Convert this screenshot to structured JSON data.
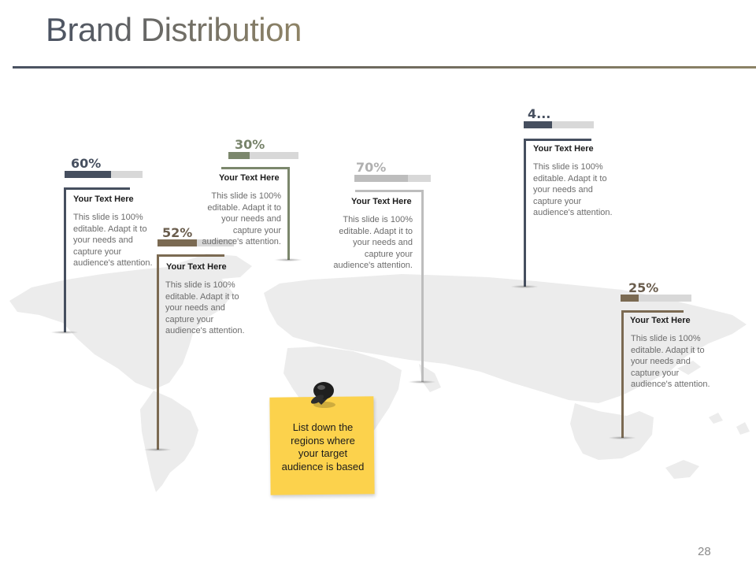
{
  "slide": {
    "title": "Brand Distribution",
    "page_number": "28"
  },
  "sticky_note": {
    "text": "List down the regions where your target audience is based"
  },
  "markers": [
    {
      "percent_label": "60%",
      "percent_value": 60,
      "heading": "Your Text Here",
      "body": "This slide is 100% editable. Adapt it to your needs and capture your audience's attention.",
      "color": "#464f5f",
      "label_color": "#464f5f"
    },
    {
      "percent_label": "52%",
      "percent_value": 52,
      "heading": "Your Text Here",
      "body": "This slide is 100% editable. Adapt it to your needs and capture your audience's attention.",
      "color": "#7b6a52",
      "label_color": "#6a5d4d"
    },
    {
      "percent_label": "30%",
      "percent_value": 30,
      "heading": "Your Text Here",
      "body": "This slide is 100% editable. Adapt it to your needs and capture your audience's attention.",
      "color": "#7b876c",
      "label_color": "#77836a"
    },
    {
      "percent_label": "70%",
      "percent_value": 70,
      "heading": "Your Text Here",
      "body": "This slide is 100% editable. Adapt it to your needs and capture your audience's attention.",
      "color": "#bdbdbd",
      "label_color": "#b0b0b0"
    },
    {
      "percent_label": "4...",
      "percent_value": 40,
      "heading": "Your Text Here",
      "body": "This slide is 100% editable. Adapt it to your needs and capture your audience's attention.",
      "color": "#464f5f",
      "label_color": "#464f5f"
    },
    {
      "percent_label": "25%",
      "percent_value": 25,
      "heading": "Your Text Here",
      "body": "This slide is 100% editable. Adapt it to your needs and capture your audience's attention.",
      "color": "#7b6a52",
      "label_color": "#6a5d4d"
    }
  ]
}
